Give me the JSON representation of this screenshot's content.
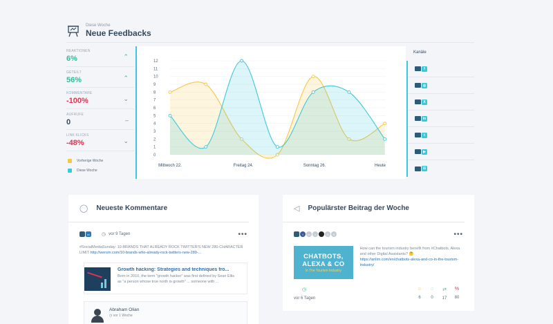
{
  "header": {
    "subtitle": "Diese Woche",
    "title": "Neue Feedbacks"
  },
  "metrics": [
    {
      "label": "REAKTIONEN",
      "value": "6%",
      "trend": "up"
    },
    {
      "label": "GETEILT",
      "value": "56%",
      "trend": "up"
    },
    {
      "label": "KOMMENTARE",
      "value": "-100%",
      "trend": "down"
    },
    {
      "label": "AUFRUFE",
      "value": "0",
      "trend": "flat"
    },
    {
      "label": "LINK KLICKS",
      "value": "-48%",
      "trend": "down"
    }
  ],
  "legend": [
    {
      "label": "Vorherige Woche",
      "color": "#f5c842"
    },
    {
      "label": "Diese Woche",
      "color": "#3cc8dc"
    }
  ],
  "chart_data": {
    "type": "line",
    "x_tick_labels": [
      "Mittwoch 22.",
      "Freitag 24.",
      "Sonntag 26.",
      "Heute"
    ],
    "x": [
      0,
      1,
      2,
      3,
      4,
      5,
      6,
      7
    ],
    "ylim": [
      0,
      12
    ],
    "y_ticks": [
      0,
      1,
      2,
      3,
      4,
      5,
      6,
      7,
      8,
      9,
      10,
      11,
      12
    ],
    "grid": true,
    "series": [
      {
        "name": "Vorherige Woche",
        "color": "#f5c842",
        "values": [
          8,
          9,
          2,
          0,
          10,
          2,
          4,
          4
        ]
      },
      {
        "name": "Diese Woche",
        "color": "#3cc8dc",
        "values": [
          5,
          1,
          12,
          1,
          8,
          8,
          2,
          2
        ]
      }
    ]
  },
  "channels": {
    "title": "Kanäle",
    "items": [
      {
        "network": "f",
        "net_color": "#3cc8dc"
      },
      {
        "network": "◎",
        "net_color": "#3cc8dc"
      },
      {
        "network": "X",
        "net_color": "#3cc8dc"
      },
      {
        "network": "in",
        "net_color": "#3cc8dc"
      },
      {
        "network": "t",
        "net_color": "#3cc8dc"
      },
      {
        "network": "▶",
        "net_color": "#3cc8dc"
      },
      {
        "network": "☷",
        "net_color": "#3cc8dc"
      }
    ]
  },
  "comments_card": {
    "title": "Neueste Kommentare",
    "time": "vor 9 Tagen",
    "text": "#SocialMediaSunday: 10 BRANDS THAT ALREADY ROCK TWITTER'S NEW 280-CHARACTER LIMIT",
    "url": "http://wersm.com/10-brands-who-already-rock-twitters-new-280-...",
    "link_title": "Growth hacking: Strategies and techniques fro...",
    "link_desc": "Born in 2010, the term \"growth hacker\" was first defined by Sean Ellis as \"a person whose true north is growth\" ... someone with ...",
    "reply_name": "Abraham Olian",
    "reply_time": "vor 1 Woche"
  },
  "popular_card": {
    "title": "Populärster Beitrag der Woche",
    "image_line1": "CHATBOTS,",
    "image_line2": "ALEXA & CO",
    "image_line3": "in The Tourism Industry",
    "text": "How can the tourism industry benefit from #Chatbots, Alexa and other Digital Assistants? 🤔",
    "url": "https://anlim.com/en/chatbots-alexa-and-co-in-the-tourism-industry/",
    "time": "vor 6 Tagen",
    "stats": [
      {
        "value": "6",
        "color": "#f5c842",
        "icon": "☺"
      },
      {
        "value": "0",
        "color": "#2bbf9a",
        "icon": "◌"
      },
      {
        "value": "17",
        "color": "#2bbf9a",
        "icon": "⇄"
      },
      {
        "value": "80",
        "color": "#e0334f",
        "icon": "%"
      }
    ]
  }
}
